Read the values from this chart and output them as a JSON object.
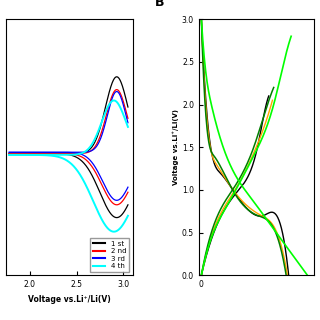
{
  "panel_A": {
    "xlabel": "Voltage vs.Li⁺/Li(V)",
    "xlim": [
      1.75,
      3.1
    ],
    "ylim": [
      -0.00015,
      0.00025
    ],
    "xticks": [
      2.0,
      2.5,
      3.0
    ],
    "legend_labels": [
      "1 st",
      "2 nd",
      "3 rd",
      "4 th"
    ],
    "legend_colors": [
      "black",
      "red",
      "blue",
      "cyan"
    ]
  },
  "panel_B": {
    "label": "B",
    "ylabel": "Voltage vs.Li⁺/Li(V)",
    "ylim": [
      0.0,
      3.0
    ],
    "yticks": [
      0.0,
      0.5,
      1.0,
      1.5,
      2.0,
      2.5,
      3.0
    ],
    "xtick": 0,
    "xlim": [
      -20,
      900
    ],
    "colors": [
      "black",
      "#008000",
      "#ffa500",
      "#00ff00"
    ]
  }
}
